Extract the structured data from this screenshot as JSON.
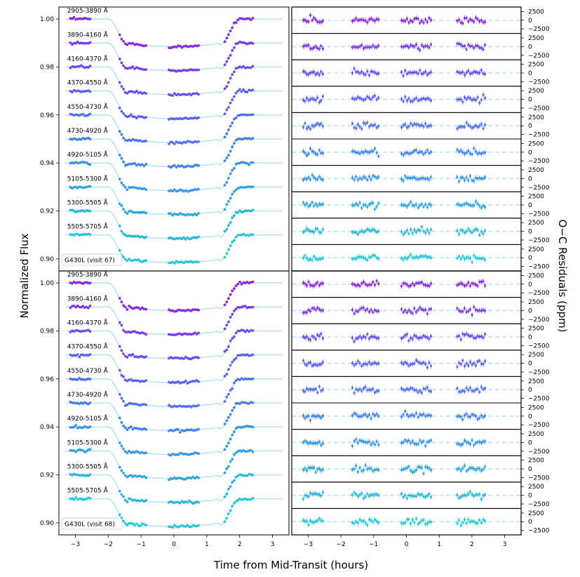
{
  "chart_data": [
    {
      "type": "scatter",
      "panel": "light-curves",
      "title": "",
      "xlabel": "Time from Mid-Transit (hours)",
      "ylabel": "Normalized Flux",
      "xlim": [
        -3.5,
        3.5
      ],
      "ylim": [
        0.895,
        1.005
      ],
      "xticks": [
        -3,
        -2,
        -1,
        0,
        1,
        2,
        3
      ],
      "yticks": [
        0.9,
        0.92,
        0.94,
        0.96,
        0.98,
        1.0
      ],
      "ytick_labels": [
        "0.90",
        "0.92",
        "0.94",
        "0.96",
        "0.98",
        "1.00"
      ],
      "transit": {
        "ingress_start": -2.0,
        "ingress_end": -1.4,
        "egress_start": 1.4,
        "egress_end": 2.0,
        "depth": 0.0115
      },
      "visit_windows": [
        [
          -3.15,
          -2.55
        ],
        [
          -1.65,
          -0.85
        ],
        [
          -0.15,
          0.75
        ],
        [
          1.55,
          2.4
        ]
      ],
      "visits": [
        {
          "label": "G430L (visit 67)",
          "id": 67
        },
        {
          "label": "G430L (visit 68)",
          "id": 68
        }
      ],
      "series": [
        {
          "name": "2905-3890 Å",
          "offset": 0.0,
          "color": "#8a2be2"
        },
        {
          "name": "3890-4160 Å",
          "offset": -0.01,
          "color": "#7b3de8"
        },
        {
          "name": "4160-4370 Å",
          "offset": -0.02,
          "color": "#6a4ff0"
        },
        {
          "name": "4370-4550 Å",
          "offset": -0.03,
          "color": "#5d60f2"
        },
        {
          "name": "4550-4730 Å",
          "offset": -0.04,
          "color": "#4e72f0"
        },
        {
          "name": "4730-4920 Å",
          "offset": -0.05,
          "color": "#4384ec"
        },
        {
          "name": "4920-5105 Å",
          "offset": -0.06,
          "color": "#3a96e6"
        },
        {
          "name": "5105-5300 Å",
          "offset": -0.07,
          "color": "#30a6e0"
        },
        {
          "name": "5300-5505 Å",
          "offset": -0.08,
          "color": "#2ab8dc"
        },
        {
          "name": "5505-5705 Å",
          "offset": -0.09,
          "color": "#28c8d8"
        }
      ],
      "model_color": "#b9e3ee"
    },
    {
      "type": "scatter",
      "panel": "residuals",
      "ylabel": "O−C Residuals (ppm)",
      "xlim": [
        -3.5,
        3.5
      ],
      "xticks": [
        -3,
        -2,
        -1,
        0,
        1,
        2,
        3
      ],
      "yticks": [
        2500,
        0,
        -2500
      ],
      "ytick_labels": [
        "2500",
        "0",
        "−2500"
      ],
      "residual_scatter_ppm": 450,
      "ylim": [
        -3800,
        3800
      ]
    }
  ],
  "labels": {
    "x_tick_labels": [
      "−3",
      "−2",
      "−1",
      "0",
      "1",
      "2",
      "3"
    ]
  }
}
